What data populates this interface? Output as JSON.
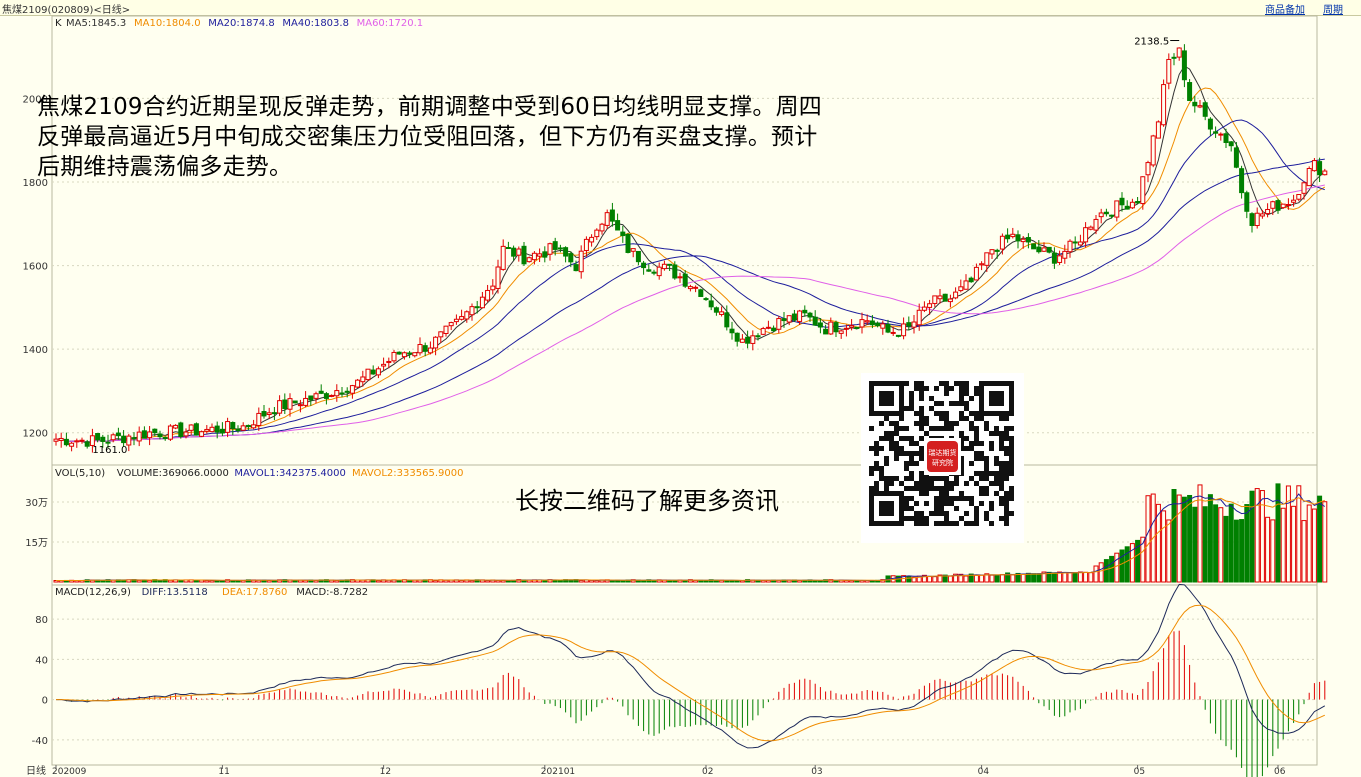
{
  "header": {
    "title": "焦煤2109(020809)<日线>",
    "product_add": "商品备加",
    "period": "周期"
  },
  "overlay": {
    "analysis": "焦煤2109合约近期呈现反弹走势，前期调整中受到60日均线明显支撑。周四反弹最高逼近5月中旬成交密集压力位受阻回落，但下方仍有买盘支撑。预计后期维持震荡偏多走势。",
    "qr_caption": "长按二维码了解更多资讯",
    "qr_badge": "瑞达期货研究院"
  },
  "colors": {
    "up": "#e00000",
    "down": "#008000",
    "ma5": "#333333",
    "ma10": "#f08c00",
    "ma20": "#1e1e9c",
    "ma40": "#1e1e9c",
    "ma60": "#e060e8",
    "mavol1": "#1e1e9c",
    "mavol2": "#f08c00",
    "diff": "#1e2a5a",
    "dea": "#f08c00"
  },
  "chart_data": {
    "type": "candlestick",
    "price_panel": {
      "indicator_label": "K",
      "legend": [
        {
          "text": "MA5:1845.3",
          "key": "ma5"
        },
        {
          "text": "MA10:1804.0",
          "key": "ma10"
        },
        {
          "text": "MA20:1874.8",
          "key": "ma20"
        },
        {
          "text": "MA40:1803.8",
          "key": "ma40"
        },
        {
          "text": "MA60:1720.1",
          "key": "ma60"
        }
      ],
      "ylim": [
        1130,
        2190
      ],
      "y_ticks": [
        "1200",
        "1400",
        "1600",
        "1800",
        "2000"
      ],
      "y_tick_values": [
        1200,
        1400,
        1600,
        1800,
        2000
      ],
      "high_label": "2138.5",
      "high_value": 2138.5,
      "low_label": "1161.0",
      "low_value": 1161.0
    },
    "volume_panel": {
      "legend": [
        {
          "text": "VOL(5,10)",
          "key": "label"
        },
        {
          "text": "VOLUME:369066.0000",
          "key": "label"
        },
        {
          "text": "MAVOL1:342375.4000",
          "key": "mavol1"
        },
        {
          "text": "MAVOL2:333565.9000",
          "key": "mavol2"
        }
      ],
      "ylim": [
        0,
        420000
      ],
      "y_ticks": [
        "15万",
        "30万"
      ],
      "y_tick_values": [
        150000,
        300000
      ]
    },
    "macd_panel": {
      "legend": [
        {
          "text": "MACD(12,26,9)",
          "key": "label"
        },
        {
          "text": "DIFF:13.5118",
          "key": "diff"
        },
        {
          "text": "DEA:17.8760",
          "key": "dea"
        },
        {
          "text": "MACD:-8.7282",
          "key": "label"
        }
      ],
      "ylim": [
        -75,
        112
      ],
      "y_ticks": [
        "-40",
        "0",
        "40",
        "80"
      ],
      "y_tick_values": [
        -40,
        0,
        40,
        80
      ]
    },
    "x_axis": {
      "label": "日线",
      "ticks": [
        {
          "label": "202009",
          "index": 0
        },
        {
          "label": "11",
          "index": 32
        },
        {
          "label": "12",
          "index": 63
        },
        {
          "label": "202101",
          "index": 94
        },
        {
          "label": "02",
          "index": 125
        },
        {
          "label": "03",
          "index": 146
        },
        {
          "label": "04",
          "index": 178
        },
        {
          "label": "05",
          "index": 208
        },
        {
          "label": "06",
          "index": 235
        }
      ]
    },
    "price_anchors": [
      [
        0,
        1185
      ],
      [
        8,
        1180
      ],
      [
        18,
        1200
      ],
      [
        28,
        1205
      ],
      [
        36,
        1215
      ],
      [
        42,
        1260
      ],
      [
        50,
        1285
      ],
      [
        58,
        1320
      ],
      [
        66,
        1390
      ],
      [
        72,
        1410
      ],
      [
        78,
        1470
      ],
      [
        84,
        1560
      ],
      [
        86,
        1640
      ],
      [
        90,
        1620
      ],
      [
        96,
        1640
      ],
      [
        100,
        1600
      ],
      [
        104,
        1700
      ],
      [
        106,
        1720
      ],
      [
        110,
        1640
      ],
      [
        114,
        1600
      ],
      [
        118,
        1590
      ],
      [
        124,
        1540
      ],
      [
        128,
        1480
      ],
      [
        132,
        1420
      ],
      [
        136,
        1450
      ],
      [
        140,
        1470
      ],
      [
        144,
        1480
      ],
      [
        148,
        1450
      ],
      [
        152,
        1460
      ],
      [
        156,
        1470
      ],
      [
        160,
        1440
      ],
      [
        164,
        1450
      ],
      [
        168,
        1510
      ],
      [
        172,
        1520
      ],
      [
        176,
        1560
      ],
      [
        180,
        1640
      ],
      [
        184,
        1670
      ],
      [
        188,
        1640
      ],
      [
        192,
        1620
      ],
      [
        196,
        1650
      ],
      [
        200,
        1720
      ],
      [
        204,
        1740
      ],
      [
        208,
        1760
      ],
      [
        212,
        1950
      ],
      [
        214,
        2090
      ],
      [
        216,
        2110
      ],
      [
        218,
        2000
      ],
      [
        222,
        1940
      ],
      [
        226,
        1890
      ],
      [
        228,
        1780
      ],
      [
        230,
        1710
      ],
      [
        234,
        1740
      ],
      [
        238,
        1760
      ],
      [
        240,
        1810
      ],
      [
        242,
        1840
      ],
      [
        244,
        1825
      ]
    ],
    "bar_count": 245,
    "bar_spacing_px": 5.2
  }
}
